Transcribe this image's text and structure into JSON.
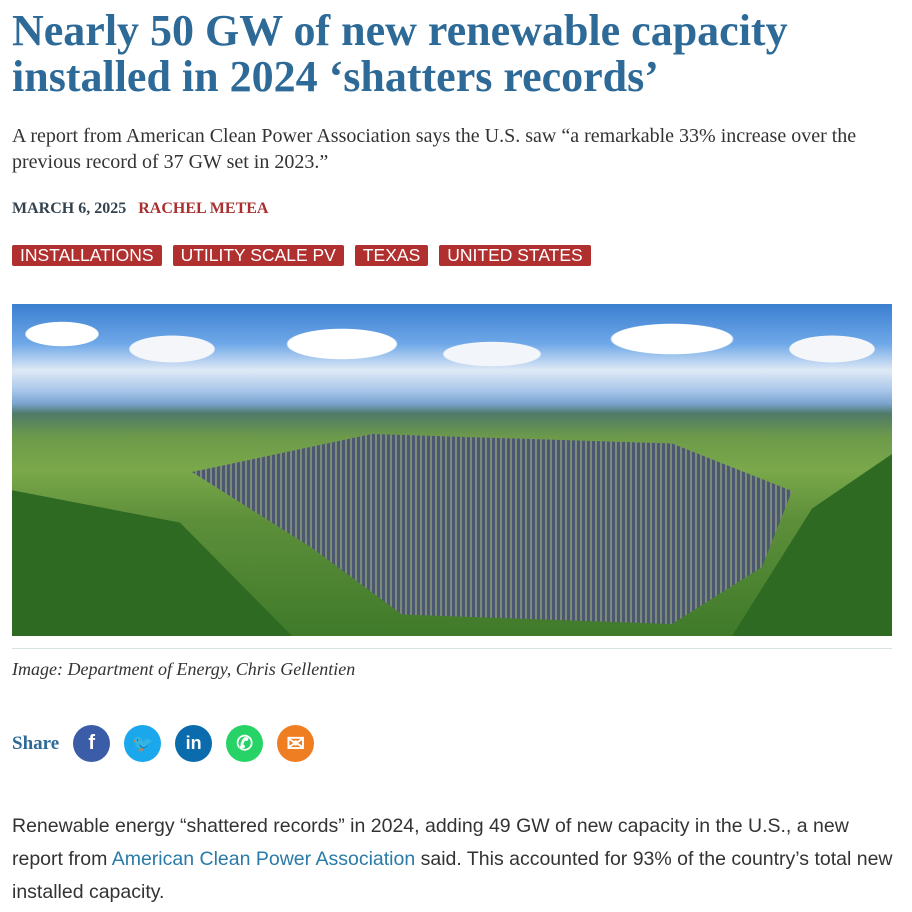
{
  "article": {
    "title": "Nearly 50 GW of new renewable capacity installed in 2024 ‘shatters records’",
    "subtitle": "A report from American Clean Power Association says the U.S. saw “a remarkable 33% increase over the previous record of 37 GW set in 2023.”",
    "date": "MARCH 6, 2025",
    "author": "RACHEL METEA",
    "tags": [
      "INSTALLATIONS",
      "UTILITY SCALE PV",
      "TEXAS",
      "UNITED STATES"
    ],
    "caption": "Image: Department of Energy, Chris Gellentien",
    "share_label": "Share",
    "share_icons": [
      {
        "name": "facebook-icon",
        "glyph": "f",
        "color": "#3b5da8"
      },
      {
        "name": "twitter-icon",
        "glyph": "🐦",
        "color": "#1aa7ec"
      },
      {
        "name": "linkedin-icon",
        "glyph": "in",
        "color": "#0a6cad"
      },
      {
        "name": "whatsapp-icon",
        "glyph": "✆",
        "color": "#27d366"
      },
      {
        "name": "email-icon",
        "glyph": "✉",
        "color": "#ef7e22"
      }
    ],
    "body": {
      "before": "Renewable energy “shattered records” in 2024, adding 49 GW of new capacity in the U.S., a new report from ",
      "link": "American Clean Power Association",
      "after": " said. This accounted for 93% of the country’s total new installed capacity."
    }
  }
}
